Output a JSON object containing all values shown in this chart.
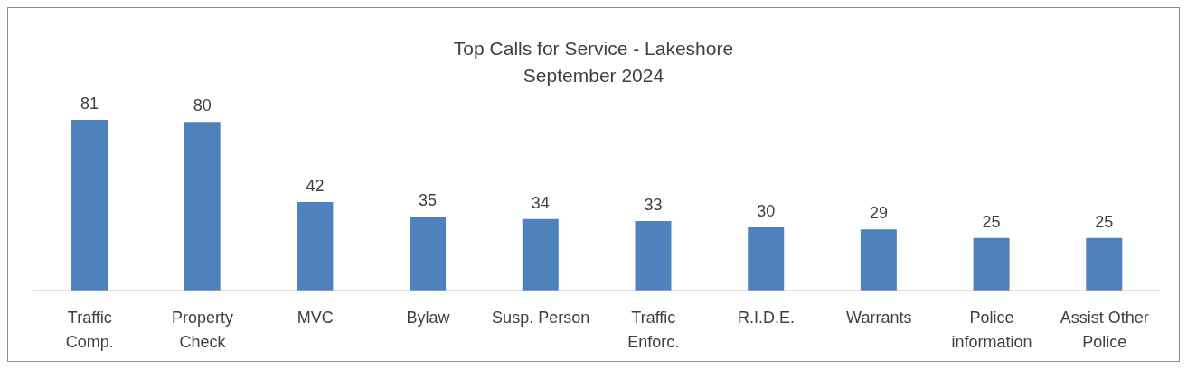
{
  "chart_data": {
    "type": "bar",
    "title": "Top Calls for Service - Lakeshore",
    "subtitle": "September 2024",
    "categories": [
      "Traffic Comp.",
      "Property Check",
      "MVC",
      "Bylaw",
      "Susp. Person",
      "Traffic Enforc.",
      "R.I.D.E.",
      "Warrants",
      "Police information",
      "Assist Other Police"
    ],
    "values": [
      81,
      80,
      42,
      35,
      34,
      33,
      30,
      29,
      25,
      25
    ],
    "color": "#4f81bd",
    "data_labels": true
  }
}
